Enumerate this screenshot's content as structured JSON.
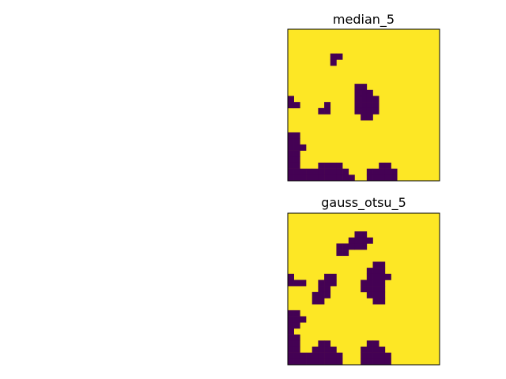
{
  "chart_data": [
    {
      "type": "heatmap",
      "title": "median_5",
      "grid": false,
      "colormap": {
        "low": "#440154",
        "high": "#fde725"
      },
      "dark_cells": [
        [
          7,
          4
        ],
        [
          8,
          4
        ],
        [
          7,
          5
        ],
        [
          11,
          9
        ],
        [
          12,
          9
        ],
        [
          11,
          10
        ],
        [
          12,
          10
        ],
        [
          13,
          10
        ],
        [
          11,
          11
        ],
        [
          12,
          11
        ],
        [
          13,
          11
        ],
        [
          14,
          11
        ],
        [
          11,
          12
        ],
        [
          12,
          12
        ],
        [
          13,
          12
        ],
        [
          14,
          12
        ],
        [
          11,
          13
        ],
        [
          12,
          13
        ],
        [
          13,
          13
        ],
        [
          14,
          13
        ],
        [
          12,
          14
        ],
        [
          13,
          14
        ],
        [
          0,
          11
        ],
        [
          0,
          12
        ],
        [
          1,
          12
        ],
        [
          6,
          12
        ],
        [
          5,
          13
        ],
        [
          6,
          13
        ],
        [
          0,
          17
        ],
        [
          1,
          17
        ],
        [
          0,
          18
        ],
        [
          1,
          18
        ],
        [
          0,
          19
        ],
        [
          1,
          19
        ],
        [
          2,
          19
        ],
        [
          0,
          20
        ],
        [
          1,
          20
        ],
        [
          0,
          21
        ],
        [
          1,
          21
        ],
        [
          0,
          22
        ],
        [
          1,
          22
        ],
        [
          5,
          22
        ],
        [
          6,
          22
        ],
        [
          7,
          22
        ],
        [
          8,
          22
        ],
        [
          15,
          22
        ],
        [
          16,
          22
        ],
        [
          0,
          23
        ],
        [
          1,
          23
        ],
        [
          2,
          23
        ],
        [
          3,
          23
        ],
        [
          4,
          23
        ],
        [
          5,
          23
        ],
        [
          6,
          23
        ],
        [
          7,
          23
        ],
        [
          8,
          23
        ],
        [
          9,
          23
        ],
        [
          13,
          23
        ],
        [
          14,
          23
        ],
        [
          15,
          23
        ],
        [
          16,
          23
        ],
        [
          17,
          23
        ],
        [
          0,
          24
        ],
        [
          1,
          24
        ],
        [
          2,
          24
        ],
        [
          3,
          24
        ],
        [
          4,
          24
        ],
        [
          5,
          24
        ],
        [
          6,
          24
        ],
        [
          7,
          24
        ],
        [
          8,
          24
        ],
        [
          9,
          24
        ],
        [
          10,
          24
        ],
        [
          13,
          24
        ],
        [
          14,
          24
        ],
        [
          15,
          24
        ],
        [
          16,
          24
        ],
        [
          17,
          24
        ]
      ]
    },
    {
      "type": "heatmap",
      "title": "gauss_otsu_5",
      "grid": false,
      "colormap": {
        "low": "#440154",
        "high": "#fde725"
      },
      "dark_cells": [
        [
          12,
          3
        ],
        [
          11,
          3
        ],
        [
          10,
          4
        ],
        [
          11,
          4
        ],
        [
          12,
          4
        ],
        [
          13,
          4
        ],
        [
          11,
          5
        ],
        [
          12,
          5
        ],
        [
          8,
          5
        ],
        [
          9,
          5
        ],
        [
          10,
          5
        ],
        [
          8,
          6
        ],
        [
          9,
          6
        ],
        [
          15,
          8
        ],
        [
          14,
          8
        ],
        [
          13,
          9
        ],
        [
          14,
          9
        ],
        [
          15,
          9
        ],
        [
          13,
          10
        ],
        [
          14,
          10
        ],
        [
          15,
          10
        ],
        [
          16,
          10
        ],
        [
          12,
          11
        ],
        [
          13,
          11
        ],
        [
          14,
          11
        ],
        [
          15,
          11
        ],
        [
          12,
          12
        ],
        [
          13,
          12
        ],
        [
          14,
          12
        ],
        [
          15,
          12
        ],
        [
          13,
          13
        ],
        [
          14,
          13
        ],
        [
          15,
          13
        ],
        [
          14,
          14
        ],
        [
          15,
          14
        ],
        [
          0,
          10
        ],
        [
          1,
          11
        ],
        [
          0,
          11
        ],
        [
          2,
          11
        ],
        [
          6,
          10
        ],
        [
          7,
          10
        ],
        [
          6,
          11
        ],
        [
          7,
          11
        ],
        [
          5,
          11
        ],
        [
          5,
          12
        ],
        [
          6,
          12
        ],
        [
          5,
          13
        ],
        [
          4,
          13
        ],
        [
          6,
          13
        ],
        [
          4,
          14
        ],
        [
          5,
          14
        ],
        [
          0,
          16
        ],
        [
          1,
          16
        ],
        [
          0,
          17
        ],
        [
          1,
          17
        ],
        [
          2,
          17
        ],
        [
          0,
          18
        ],
        [
          1,
          18
        ],
        [
          0,
          19
        ],
        [
          0,
          20
        ],
        [
          1,
          20
        ],
        [
          0,
          21
        ],
        [
          1,
          21
        ],
        [
          0,
          22
        ],
        [
          1,
          22
        ],
        [
          5,
          21
        ],
        [
          6,
          21
        ],
        [
          4,
          22
        ],
        [
          5,
          22
        ],
        [
          6,
          22
        ],
        [
          7,
          22
        ],
        [
          13,
          21
        ],
        [
          14,
          21
        ],
        [
          12,
          22
        ],
        [
          13,
          22
        ],
        [
          14,
          22
        ],
        [
          15,
          22
        ],
        [
          0,
          23
        ],
        [
          1,
          23
        ],
        [
          2,
          23
        ],
        [
          3,
          23
        ],
        [
          4,
          23
        ],
        [
          5,
          23
        ],
        [
          6,
          23
        ],
        [
          7,
          23
        ],
        [
          8,
          23
        ],
        [
          12,
          23
        ],
        [
          13,
          23
        ],
        [
          14,
          23
        ],
        [
          15,
          23
        ],
        [
          16,
          23
        ],
        [
          0,
          24
        ],
        [
          1,
          24
        ],
        [
          2,
          24
        ],
        [
          3,
          24
        ],
        [
          4,
          24
        ],
        [
          5,
          24
        ],
        [
          6,
          24
        ],
        [
          7,
          24
        ],
        [
          8,
          24
        ],
        [
          12,
          24
        ],
        [
          13,
          24
        ],
        [
          14,
          24
        ],
        [
          15,
          24
        ],
        [
          16,
          24
        ]
      ]
    }
  ]
}
